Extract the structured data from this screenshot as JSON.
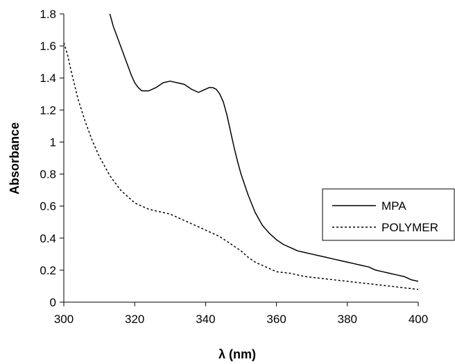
{
  "chart_data": {
    "type": "line",
    "title": "",
    "xlabel": "λ (nm)",
    "ylabel": "Absorbance",
    "xlim": [
      300,
      400
    ],
    "ylim": [
      0,
      1.8
    ],
    "x_ticks": [
      "300",
      "320",
      "340",
      "360",
      "380",
      "400"
    ],
    "y_ticks": [
      "0",
      "0.2",
      "0.4",
      "0.6",
      "0.8",
      "1",
      "1.2",
      "1.4",
      "1.6",
      "1.8"
    ],
    "grid": false,
    "legend_position": "right",
    "series": [
      {
        "name": "MPA",
        "line_style": "solid",
        "color": "#000000",
        "points": [
          [
            313,
            1.8
          ],
          [
            314,
            1.72
          ],
          [
            316,
            1.6
          ],
          [
            318,
            1.48
          ],
          [
            319,
            1.42
          ],
          [
            320,
            1.37
          ],
          [
            321,
            1.34
          ],
          [
            322,
            1.32
          ],
          [
            323,
            1.32
          ],
          [
            324,
            1.32
          ],
          [
            326,
            1.34
          ],
          [
            328,
            1.37
          ],
          [
            330,
            1.38
          ],
          [
            332,
            1.37
          ],
          [
            334,
            1.36
          ],
          [
            336,
            1.33
          ],
          [
            338,
            1.31
          ],
          [
            339,
            1.32
          ],
          [
            340,
            1.33
          ],
          [
            341,
            1.34
          ],
          [
            342,
            1.34
          ],
          [
            343,
            1.33
          ],
          [
            344,
            1.3
          ],
          [
            345,
            1.25
          ],
          [
            346,
            1.17
          ],
          [
            347,
            1.07
          ],
          [
            348,
            0.97
          ],
          [
            349,
            0.88
          ],
          [
            350,
            0.8
          ],
          [
            352,
            0.67
          ],
          [
            354,
            0.56
          ],
          [
            356,
            0.48
          ],
          [
            358,
            0.43
          ],
          [
            360,
            0.39
          ],
          [
            362,
            0.36
          ],
          [
            364,
            0.34
          ],
          [
            366,
            0.32
          ],
          [
            368,
            0.31
          ],
          [
            370,
            0.3
          ],
          [
            372,
            0.29
          ],
          [
            374,
            0.28
          ],
          [
            376,
            0.27
          ],
          [
            378,
            0.26
          ],
          [
            380,
            0.25
          ],
          [
            382,
            0.24
          ],
          [
            384,
            0.23
          ],
          [
            386,
            0.22
          ],
          [
            388,
            0.2
          ],
          [
            390,
            0.19
          ],
          [
            392,
            0.18
          ],
          [
            394,
            0.17
          ],
          [
            396,
            0.16
          ],
          [
            398,
            0.14
          ],
          [
            400,
            0.13
          ]
        ]
      },
      {
        "name": "POLYMER",
        "line_style": "dashed",
        "color": "#000000",
        "points": [
          [
            300,
            1.62
          ],
          [
            301,
            1.55
          ],
          [
            302,
            1.45
          ],
          [
            303,
            1.36
          ],
          [
            304,
            1.27
          ],
          [
            305,
            1.2
          ],
          [
            306,
            1.13
          ],
          [
            307,
            1.07
          ],
          [
            308,
            1.01
          ],
          [
            309,
            0.96
          ],
          [
            310,
            0.91
          ],
          [
            311,
            0.87
          ],
          [
            312,
            0.83
          ],
          [
            313,
            0.79
          ],
          [
            314,
            0.76
          ],
          [
            315,
            0.73
          ],
          [
            316,
            0.7
          ],
          [
            317,
            0.68
          ],
          [
            318,
            0.66
          ],
          [
            319,
            0.64
          ],
          [
            320,
            0.62
          ],
          [
            322,
            0.6
          ],
          [
            324,
            0.58
          ],
          [
            326,
            0.57
          ],
          [
            328,
            0.56
          ],
          [
            330,
            0.55
          ],
          [
            332,
            0.53
          ],
          [
            334,
            0.51
          ],
          [
            336,
            0.49
          ],
          [
            338,
            0.47
          ],
          [
            340,
            0.45
          ],
          [
            342,
            0.43
          ],
          [
            344,
            0.41
          ],
          [
            346,
            0.38
          ],
          [
            348,
            0.35
          ],
          [
            350,
            0.32
          ],
          [
            352,
            0.28
          ],
          [
            354,
            0.25
          ],
          [
            356,
            0.23
          ],
          [
            358,
            0.21
          ],
          [
            360,
            0.19
          ],
          [
            364,
            0.18
          ],
          [
            368,
            0.16
          ],
          [
            372,
            0.15
          ],
          [
            376,
            0.14
          ],
          [
            380,
            0.13
          ],
          [
            384,
            0.12
          ],
          [
            388,
            0.11
          ],
          [
            392,
            0.1
          ],
          [
            396,
            0.09
          ],
          [
            400,
            0.08
          ]
        ]
      }
    ]
  }
}
